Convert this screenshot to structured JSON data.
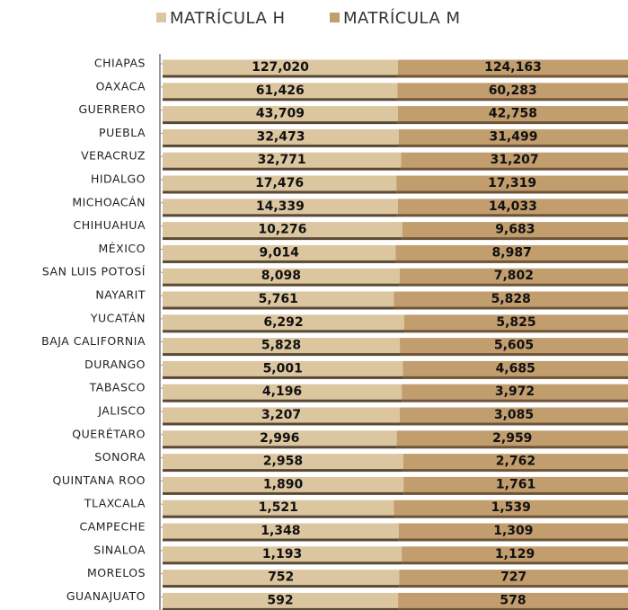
{
  "chart_data": {
    "type": "bar",
    "stacked_percent": true,
    "categories": [
      "CHIAPAS",
      "OAXACA",
      "GUERRERO",
      "PUEBLA",
      "VERACRUZ",
      "HIDALGO",
      "MICHOACÁN",
      "CHIHUAHUA",
      "MÉXICO",
      "SAN LUIS POTOSÍ",
      "NAYARIT",
      "YUCATÁN",
      "BAJA CALIFORNIA",
      "DURANGO",
      "TABASCO",
      "JALISCO",
      "QUERÉTARO",
      "SONORA",
      "QUINTANA ROO",
      "TLAXCALA",
      "CAMPECHE",
      "SINALOA",
      "MORELOS",
      "GUANAJUATO"
    ],
    "series": [
      {
        "name": "MATRÍCULA H",
        "color": "#dcc6a0",
        "values": [
          127020,
          61426,
          43709,
          32473,
          32771,
          17476,
          14339,
          10276,
          9014,
          8098,
          5761,
          6292,
          5828,
          5001,
          4196,
          3207,
          2996,
          2958,
          1890,
          1521,
          1348,
          1193,
          752,
          592
        ],
        "value_labels": [
          "127,020",
          "61,426",
          "43,709",
          "32,473",
          "32,771",
          "17,476",
          "14,339",
          "10,276",
          "9,014",
          "8,098",
          "5,761",
          "6,292",
          "5,828",
          "5,001",
          "4,196",
          "3,207",
          "2,996",
          "2,958",
          "1,890",
          "1,521",
          "1,348",
          "1,193",
          "752",
          "592"
        ]
      },
      {
        "name": "MATRÍCULA M",
        "color": "#c29d6e",
        "values": [
          124163,
          60283,
          42758,
          31499,
          31207,
          17319,
          14033,
          9683,
          8987,
          7802,
          5828,
          5825,
          5605,
          4685,
          3972,
          3085,
          2959,
          2762,
          1761,
          1539,
          1309,
          1129,
          727,
          578
        ],
        "value_labels": [
          "124,163",
          "60,283",
          "42,758",
          "31,499",
          "31,207",
          "17,319",
          "14,033",
          "9,683",
          "8,987",
          "7,802",
          "5,828",
          "5,825",
          "5,605",
          "4,685",
          "3,972",
          "3,085",
          "2,959",
          "2,762",
          "1,761",
          "1,539",
          "1,309",
          "1,129",
          "727",
          "578"
        ]
      }
    ],
    "legend": "top"
  }
}
